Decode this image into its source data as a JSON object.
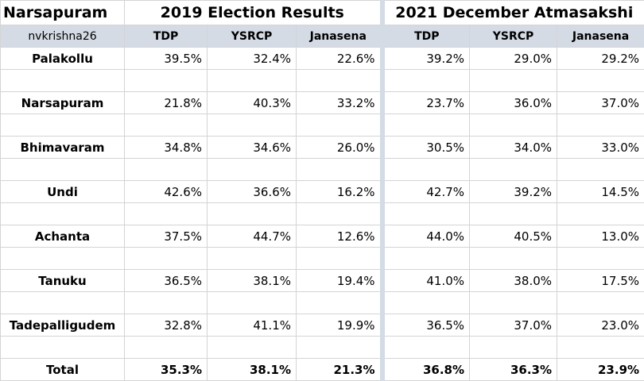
{
  "chart_data": {
    "type": "table",
    "region": "Narsapuram",
    "author": "nvkrishna26",
    "groups": [
      {
        "title": "2019 Election Results",
        "color": "#1aa54b",
        "columns": [
          "TDP",
          "YSRCP",
          "Janasena"
        ]
      },
      {
        "title": "2021 December Atmasakshi",
        "color": "#e3111b",
        "columns": [
          "TDP",
          "YSRCP",
          "Janasena"
        ]
      }
    ],
    "rows": [
      {
        "name": "Palakollu",
        "values": [
          "39.5%",
          "32.4%",
          "22.6%",
          "39.2%",
          "29.0%",
          "29.2%"
        ]
      },
      {
        "name": "Narsapuram",
        "values": [
          "21.8%",
          "40.3%",
          "33.2%",
          "23.7%",
          "36.0%",
          "37.0%"
        ]
      },
      {
        "name": "Bhimavaram",
        "values": [
          "34.8%",
          "34.6%",
          "26.0%",
          "30.5%",
          "34.0%",
          "33.0%"
        ]
      },
      {
        "name": "Undi",
        "values": [
          "42.6%",
          "36.6%",
          "16.2%",
          "42.7%",
          "39.2%",
          "14.5%"
        ]
      },
      {
        "name": "Achanta",
        "values": [
          "37.5%",
          "44.7%",
          "12.6%",
          "44.0%",
          "40.5%",
          "13.0%"
        ]
      },
      {
        "name": "Tanuku",
        "values": [
          "36.5%",
          "38.1%",
          "19.4%",
          "41.0%",
          "38.0%",
          "17.5%"
        ]
      },
      {
        "name": "Tadepalligudem",
        "values": [
          "32.8%",
          "41.1%",
          "19.9%",
          "36.5%",
          "37.0%",
          "23.0%"
        ]
      }
    ],
    "total": {
      "name": "Total",
      "values": [
        "35.3%",
        "38.1%",
        "21.3%",
        "36.8%",
        "36.3%",
        "23.9%"
      ]
    }
  }
}
